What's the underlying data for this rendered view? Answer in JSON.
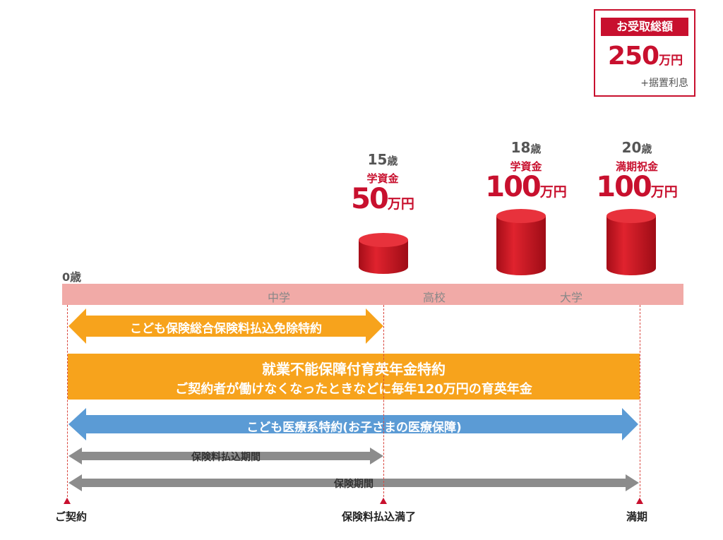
{
  "total": {
    "label": "お受取総額",
    "amount": "250",
    "unit": "万円",
    "note": "+据置利息"
  },
  "milestones": [
    {
      "age": "15",
      "age_suffix": "歳",
      "label": "学資金",
      "amount": "50",
      "unit": "万円"
    },
    {
      "age": "18",
      "age_suffix": "歳",
      "label": "学資金",
      "amount": "100",
      "unit": "万円"
    },
    {
      "age": "20",
      "age_suffix": "歳",
      "label": "満期祝金",
      "amount": "100",
      "unit": "万円"
    }
  ],
  "timeline": {
    "start_age": "0歳",
    "stages": [
      "中学",
      "高校",
      "大学"
    ]
  },
  "bands": {
    "premium_waiver": "こども保険総合保険料払込免除特約",
    "annuity_title": "就業不能保障付育英年金特約",
    "annuity_sub": "ご契約者が働けなくなったときなどに毎年120万円の育英年金",
    "medical": "こども医療系特約(お子さまの医療保障)",
    "payment_period": "保険料払込期間",
    "coverage_period": "保険期間"
  },
  "bottom_labels": {
    "contract": "ご契約",
    "payment_end": "保険料払込満了",
    "maturity": "満期"
  },
  "colors": {
    "red": "#c8102e",
    "orange": "#f7a31c",
    "blue": "#5b9bd5",
    "gray": "#8c8c8c",
    "timeline": "#f1aaa7"
  }
}
